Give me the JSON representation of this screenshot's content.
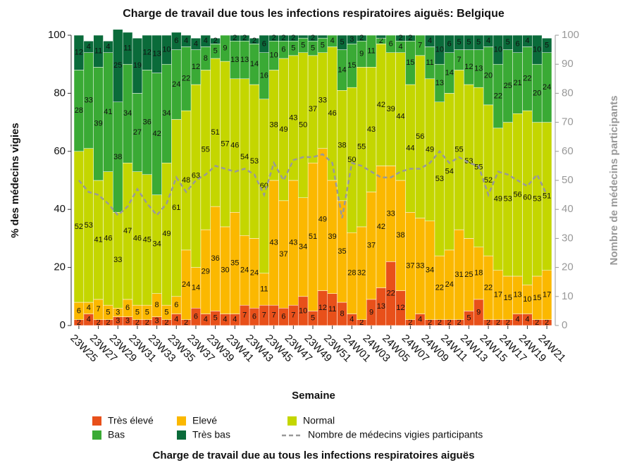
{
  "chart_data": {
    "type": "bar",
    "stacked": true,
    "title": "Charge de travail due tous les infections respiratoires aiguës: Belgique",
    "xlabel": "Semaine",
    "ylabel": "% des médecins vigies",
    "y2label": "Nombre de médecins participants",
    "caption": "Charge de travail due au tous les infections respiratoires aiguës",
    "categories": [
      "23W25",
      null,
      "23W27",
      null,
      "23W29",
      null,
      "23W31",
      null,
      "23W33",
      null,
      "23W35",
      null,
      "23W37",
      null,
      "23W39",
      null,
      "23W41",
      null,
      "23W43",
      null,
      "23W45",
      null,
      "23W47",
      null,
      "23W49",
      null,
      "23W51",
      null,
      "24W01",
      null,
      "24W03",
      null,
      "24W05",
      null,
      "24W07",
      null,
      "24W09",
      null,
      "24W11",
      null,
      "24W13",
      null,
      "24W15",
      null,
      "24W17",
      null,
      "24W19",
      null,
      "24W21"
    ],
    "series": [
      {
        "name": "Très élevé",
        "color": "#e8501a",
        "values": [
          2,
          4,
          2,
          2,
          3,
          3,
          2,
          2,
          3,
          2,
          4,
          2,
          6,
          4,
          5,
          4,
          4,
          7,
          6,
          7,
          7,
          6,
          7,
          10,
          5,
          12,
          11,
          8,
          4,
          2,
          9,
          13,
          22,
          12,
          2,
          4,
          2,
          2,
          2,
          2,
          5,
          9,
          2,
          2,
          2,
          4,
          4,
          2,
          2
        ]
      },
      {
        "name": "Elevé",
        "color": "#fbb800",
        "values": [
          6,
          4,
          7,
          5,
          3,
          6,
          5,
          5,
          8,
          5,
          6,
          24,
          14,
          29,
          36,
          30,
          35,
          24,
          24,
          11,
          43,
          37,
          43,
          34,
          51,
          49,
          39,
          35,
          28,
          32,
          37,
          42,
          33,
          38,
          37,
          33,
          34,
          22,
          24,
          31,
          25,
          18,
          22,
          17,
          15,
          13,
          10,
          15,
          17
        ]
      },
      {
        "name": "Normal",
        "color": "#c4d600",
        "values": [
          52,
          53,
          41,
          46,
          33,
          47,
          46,
          45,
          34,
          49,
          61,
          48,
          63,
          55,
          51,
          57,
          46,
          54,
          53,
          60,
          38,
          49,
          43,
          50,
          37,
          33,
          46,
          38,
          50,
          55,
          43,
          42,
          39,
          44,
          44,
          56,
          49,
          53,
          54,
          55,
          53,
          55,
          52,
          49,
          53,
          56,
          60,
          53,
          51
        ]
      },
      {
        "name": "Bas",
        "color": "#3aaa35",
        "values": [
          28,
          33,
          39,
          41,
          38,
          34,
          27,
          36,
          42,
          34,
          24,
          22,
          12,
          8,
          5,
          9,
          13,
          13,
          14,
          16,
          10,
          6,
          5,
          5,
          5,
          5,
          4,
          14,
          15,
          9,
          11,
          2,
          6,
          4,
          15,
          7,
          11,
          13,
          14,
          7,
          12,
          13,
          20,
          22,
          25,
          21,
          22,
          20,
          24
        ]
      },
      {
        "name": "Très bas",
        "color": "#0a6b3a",
        "values": [
          12,
          4,
          11,
          4,
          25,
          11,
          19,
          12,
          13,
          10,
          6,
          4,
          4,
          4,
          2,
          0,
          2,
          2,
          2,
          6,
          2,
          2,
          2,
          1,
          2,
          1,
          0,
          5,
          3,
          2,
          0,
          1,
          0,
          2,
          2,
          0,
          4,
          10,
          6,
          5,
          5,
          5,
          4,
          10,
          5,
          6,
          4,
          10,
          5
        ]
      },
      {
        "name": "Nombre de médecins vigies participants",
        "color": "#999999",
        "type": "line",
        "axis": "y2",
        "values": [
          50,
          46,
          45,
          42,
          38,
          41,
          47,
          42,
          38,
          42,
          51,
          46,
          50,
          52,
          55,
          54,
          53,
          54,
          52,
          45,
          56,
          50,
          57,
          58,
          58,
          59,
          56,
          37,
          56,
          55,
          53,
          51,
          51,
          53,
          54,
          54,
          56,
          60,
          56,
          58,
          56,
          55,
          45,
          53,
          52,
          50,
          48,
          52,
          45
        ]
      }
    ],
    "ylim": [
      0,
      100
    ],
    "yticks": [
      0,
      20,
      40,
      60,
      80,
      100
    ],
    "y2lim": [
      0,
      100
    ],
    "y2ticks": [
      0,
      10,
      20,
      30,
      40,
      50,
      60,
      70,
      80,
      90,
      100
    ]
  }
}
